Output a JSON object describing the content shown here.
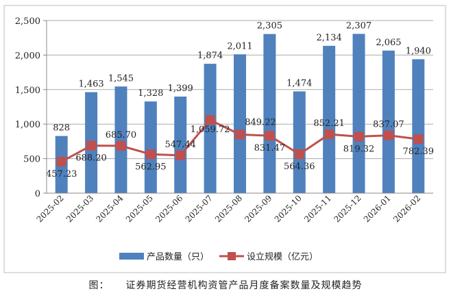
{
  "chart_data": {
    "type": "bar+line",
    "categories": [
      "2025-02",
      "2025-03",
      "2025-04",
      "2025-05",
      "2025-06",
      "2025-07",
      "2025-08",
      "2025-09",
      "2025-10",
      "2025-11",
      "2025-12",
      "2026-01",
      "2026-02"
    ],
    "series": [
      {
        "name": "产品数量（只）",
        "type": "bar",
        "color": "#4f81bd",
        "values": [
          828,
          1463,
          1545,
          1328,
          1399,
          1874,
          2011,
          2305,
          1474,
          2134,
          2307,
          2065,
          1940
        ],
        "labels": [
          "828",
          "1,463",
          "1,545",
          "1,328",
          "1,399",
          "1,874",
          "2,011",
          "2,305",
          "1,474",
          "2,134",
          "2,307",
          "2,065",
          "1,940"
        ]
      },
      {
        "name": "设立规模（亿元）",
        "type": "line",
        "color": "#c0504d",
        "values": [
          457.23,
          688.2,
          685.7,
          562.95,
          547.44,
          1059.72,
          849.22,
          831.47,
          564.36,
          852.21,
          819.32,
          837.07,
          782.39
        ],
        "labels": [
          "457.23",
          "688.20",
          "685.70",
          "562.95",
          "547.44",
          "1,059.72",
          "849.22",
          "831.47",
          "564.36",
          "852.21",
          "819.32",
          "837.07",
          "782.39"
        ]
      }
    ],
    "yticks": [
      "0",
      "500",
      "1,000",
      "1,500",
      "2,000",
      "2,500"
    ],
    "ytick_values": [
      0,
      500,
      1000,
      1500,
      2000,
      2500
    ],
    "ylim": [
      0,
      2500
    ],
    "grid": true,
    "legend": "bottom"
  },
  "caption": {
    "prefix": "图：",
    "title": "证券期货经营机构资管产品月度备案数量及规模趋势"
  }
}
